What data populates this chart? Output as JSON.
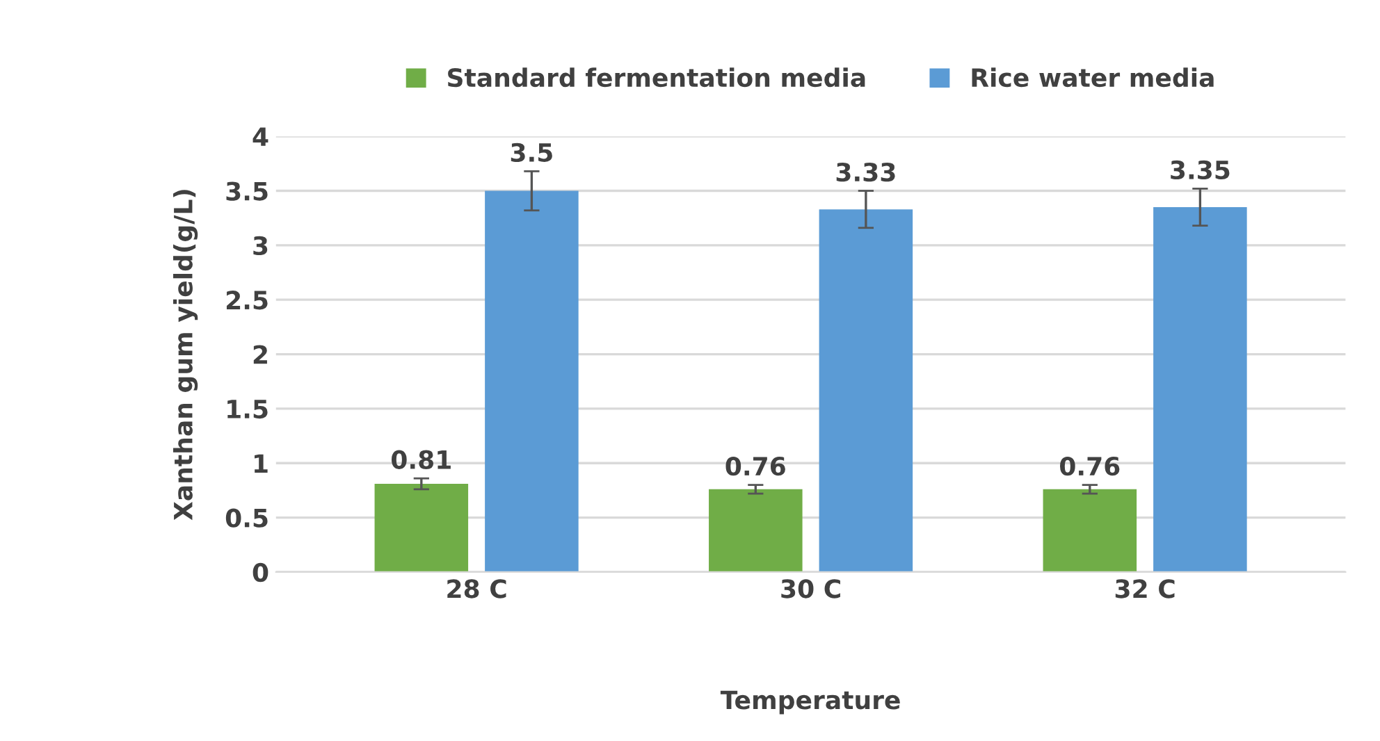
{
  "chart_data": {
    "type": "bar",
    "xlabel": "Temperature",
    "ylabel": "Xanthan gum yield(g/L)",
    "categories": [
      "28 C",
      "30 C",
      "32 C"
    ],
    "series": [
      {
        "name": "Standard fermentation media",
        "color": "#70ad47",
        "values": [
          0.81,
          0.76,
          0.76
        ],
        "errors": [
          0.05,
          0.04,
          0.04
        ]
      },
      {
        "name": "Rice water media",
        "color": "#5b9bd5",
        "values": [
          3.5,
          3.33,
          3.35
        ],
        "errors": [
          0.18,
          0.17,
          0.17
        ]
      }
    ],
    "ylim": [
      0,
      4
    ],
    "yticks": [
      0,
      0.5,
      1,
      1.5,
      2,
      2.5,
      3,
      3.5,
      4
    ],
    "grid": "y",
    "legend": "top",
    "data_labels": true
  }
}
